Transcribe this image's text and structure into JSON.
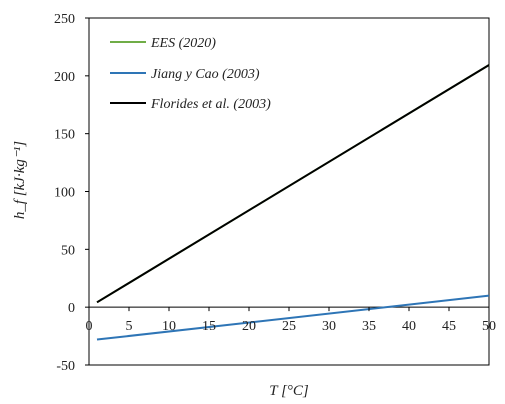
{
  "chart_data": {
    "type": "line",
    "xlabel": "T [°C]",
    "ylabel": "h_f [kJ·kg⁻¹]",
    "xlim": [
      0,
      50
    ],
    "ylim": [
      -50,
      250
    ],
    "xticks": [
      0,
      5,
      10,
      15,
      20,
      25,
      30,
      35,
      40,
      45,
      50
    ],
    "yticks": [
      -50,
      0,
      50,
      100,
      150,
      200,
      250
    ],
    "grid": false,
    "legend_position": "top-left",
    "series": [
      {
        "name": "EES (2020)",
        "color": "#70ad47",
        "x": [
          1,
          50
        ],
        "y": [
          4.2,
          209.4
        ]
      },
      {
        "name": "Jiang y Cao (2003)",
        "color": "#2e75b6",
        "x": [
          1,
          50
        ],
        "y": [
          -28,
          10
        ]
      },
      {
        "name": "Florides et al. (2003)",
        "color": "#000000",
        "x": [
          1,
          50
        ],
        "y": [
          4.2,
          209.4
        ]
      }
    ]
  }
}
